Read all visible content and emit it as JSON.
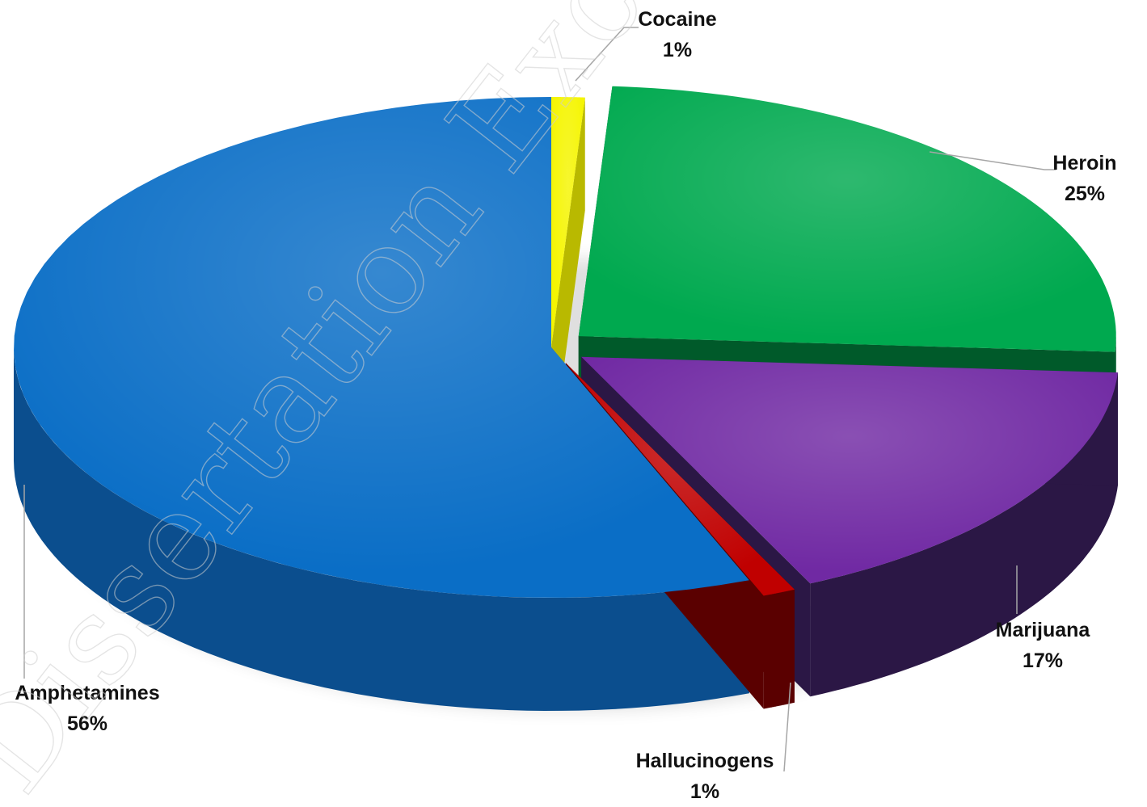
{
  "watermark": {
    "text": "Dissertation Excluded"
  },
  "chart_data": {
    "type": "pie",
    "title": "",
    "slices": [
      {
        "label": "Amphetamines",
        "value": 56,
        "display": "56%",
        "color": "#0a6ec6",
        "side_color": "#0b4e8e"
      },
      {
        "label": "Cocaine",
        "value": 1,
        "display": "1%",
        "color": "#f5f500",
        "side_color": "#b9b900"
      },
      {
        "label": "Heroin",
        "value": 25,
        "display": "25%",
        "color": "#00a94f",
        "side_color": "#005a2a"
      },
      {
        "label": "Marijuana",
        "value": 17,
        "display": "17%",
        "color": "#7029a3",
        "side_color": "#2b1745"
      },
      {
        "label": "Hallucinogens",
        "value": 1,
        "display": "1%",
        "color": "#c00000",
        "side_color": "#5a0000"
      }
    ],
    "legend": "none",
    "data_labels": "category name and percentage, outside with leader lines",
    "style": "3d exploded"
  }
}
